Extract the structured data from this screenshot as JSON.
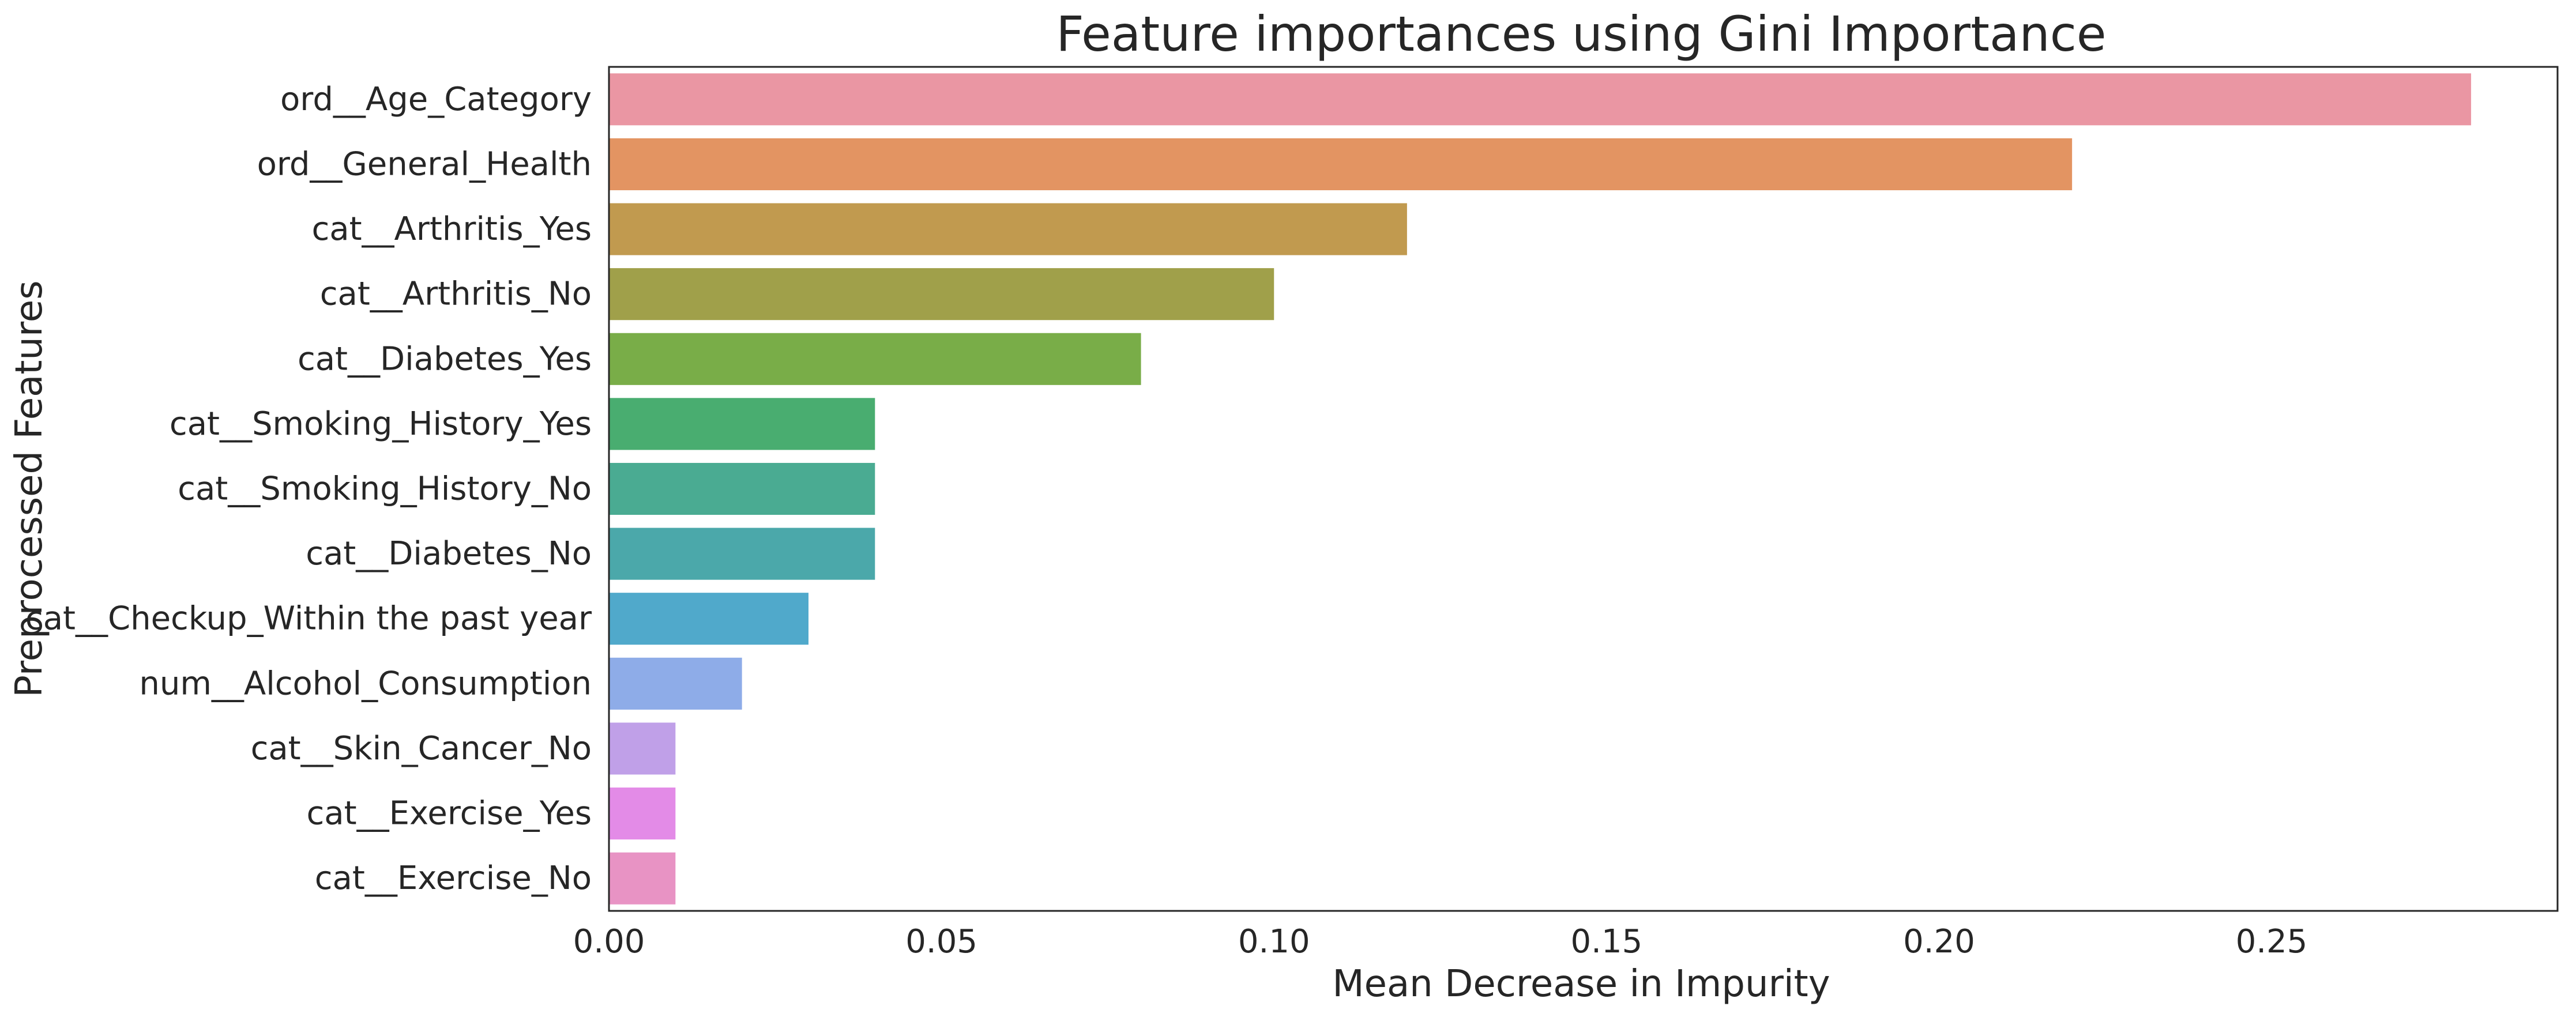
{
  "chart_data": {
    "type": "bar",
    "orientation": "horizontal",
    "title": "Feature importances using Gini Importance",
    "xlabel": "Mean Decrease in Impurity",
    "ylabel": "Preprocessed Features",
    "xlim": [
      0,
      0.293
    ],
    "xticks": [
      "0.00",
      "0.05",
      "0.10",
      "0.15",
      "0.20",
      "0.25"
    ],
    "grid": false,
    "categories": [
      "ord__Age_Category",
      "ord__General_Health",
      "cat__Arthritis_Yes",
      "cat__Arthritis_No",
      "cat__Diabetes_Yes",
      "cat__Smoking_History_Yes",
      "cat__Smoking_History_No",
      "cat__Diabetes_No",
      "cat__Checkup_Within the past year",
      "num__Alcohol_Consumption",
      "cat__Skin_Cancer_No",
      "cat__Exercise_Yes",
      "cat__Exercise_No"
    ],
    "values": [
      0.28,
      0.22,
      0.12,
      0.1,
      0.08,
      0.04,
      0.04,
      0.04,
      0.03,
      0.02,
      0.01,
      0.01,
      0.01
    ],
    "colors": [
      "#ea96a3",
      "#e39462",
      "#c19a4f",
      "#a0a04a",
      "#79ad48",
      "#49ad70",
      "#4aab92",
      "#4ba8aa",
      "#50a9cb",
      "#8eace8",
      "#c0a0e8",
      "#e38be7",
      "#e893c4"
    ]
  }
}
